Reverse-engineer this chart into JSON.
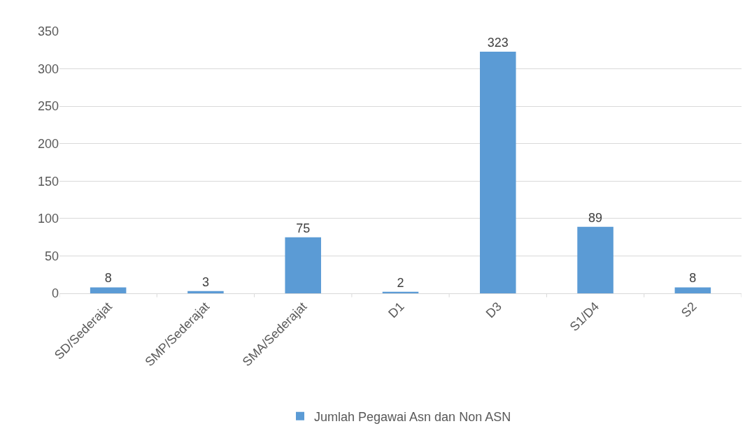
{
  "chart_data": {
    "type": "bar",
    "categories": [
      "SD/Sederajat",
      "SMP/Sederajat",
      "SMA/Sederajat",
      "D1",
      "D3",
      "S1/D4",
      "S2"
    ],
    "series": [
      {
        "name": "Jumlah Pegawai Asn dan Non ASN",
        "color": "#5b9bd5",
        "values": [
          8,
          3,
          75,
          2,
          323,
          89,
          8
        ]
      }
    ],
    "ylim": [
      0,
      350
    ],
    "yticks": [
      0,
      50,
      100,
      150,
      200,
      250,
      300,
      350
    ],
    "grid": "y",
    "legend": "bottom",
    "data_labels": true
  }
}
